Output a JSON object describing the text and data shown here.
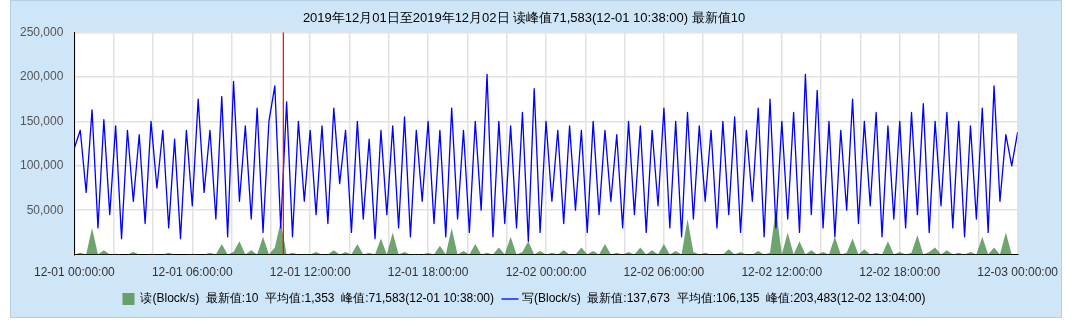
{
  "chart_data": {
    "type": "line",
    "title": "2019年12月01日至2019年12月02日 读峰值71,583(12-01 10:38:00) 最新值10",
    "x": [
      "2019-12-01T00:00",
      "2019-12-01T00:18",
      "2019-12-01T00:36",
      "2019-12-01T00:54",
      "2019-12-01T01:12",
      "2019-12-01T01:30",
      "2019-12-01T01:48",
      "2019-12-01T02:06",
      "2019-12-01T02:24",
      "2019-12-01T02:42",
      "2019-12-01T03:00",
      "2019-12-01T03:18",
      "2019-12-01T03:36",
      "2019-12-01T03:54",
      "2019-12-01T04:12",
      "2019-12-01T04:30",
      "2019-12-01T04:48",
      "2019-12-01T05:06",
      "2019-12-01T05:24",
      "2019-12-01T05:42",
      "2019-12-01T06:00",
      "2019-12-01T06:18",
      "2019-12-01T06:36",
      "2019-12-01T06:54",
      "2019-12-01T07:12",
      "2019-12-01T07:30",
      "2019-12-01T07:48",
      "2019-12-01T08:06",
      "2019-12-01T08:24",
      "2019-12-01T08:42",
      "2019-12-01T09:00",
      "2019-12-01T09:18",
      "2019-12-01T09:36",
      "2019-12-01T09:54",
      "2019-12-01T10:12",
      "2019-12-01T10:30",
      "2019-12-01T10:48",
      "2019-12-01T11:06",
      "2019-12-01T11:24",
      "2019-12-01T11:42",
      "2019-12-01T12:00",
      "2019-12-01T12:18",
      "2019-12-01T12:36",
      "2019-12-01T12:54",
      "2019-12-01T13:12",
      "2019-12-01T13:30",
      "2019-12-01T13:48",
      "2019-12-01T14:06",
      "2019-12-01T14:24",
      "2019-12-01T14:42",
      "2019-12-01T15:00",
      "2019-12-01T15:18",
      "2019-12-01T15:36",
      "2019-12-01T15:54",
      "2019-12-01T16:12",
      "2019-12-01T16:30",
      "2019-12-01T16:48",
      "2019-12-01T17:06",
      "2019-12-01T17:24",
      "2019-12-01T17:42",
      "2019-12-01T18:00",
      "2019-12-01T18:18",
      "2019-12-01T18:36",
      "2019-12-01T18:54",
      "2019-12-01T19:12",
      "2019-12-01T19:30",
      "2019-12-01T19:48",
      "2019-12-01T20:06",
      "2019-12-01T20:24",
      "2019-12-01T20:42",
      "2019-12-01T21:00",
      "2019-12-01T21:18",
      "2019-12-01T21:36",
      "2019-12-01T21:54",
      "2019-12-01T22:12",
      "2019-12-01T22:30",
      "2019-12-01T22:48",
      "2019-12-01T23:06",
      "2019-12-01T23:24",
      "2019-12-01T23:42",
      "2019-12-02T00:00",
      "2019-12-02T00:18",
      "2019-12-02T00:36",
      "2019-12-02T00:54",
      "2019-12-02T01:12",
      "2019-12-02T01:30",
      "2019-12-02T01:48",
      "2019-12-02T02:06",
      "2019-12-02T02:24",
      "2019-12-02T02:42",
      "2019-12-02T03:00",
      "2019-12-02T03:18",
      "2019-12-02T03:36",
      "2019-12-02T03:54",
      "2019-12-02T04:12",
      "2019-12-02T04:30",
      "2019-12-02T04:48",
      "2019-12-02T05:06",
      "2019-12-02T05:24",
      "2019-12-02T05:42",
      "2019-12-02T06:00",
      "2019-12-02T06:18",
      "2019-12-02T06:36",
      "2019-12-02T06:54",
      "2019-12-02T07:12",
      "2019-12-02T07:30",
      "2019-12-02T07:48",
      "2019-12-02T08:06",
      "2019-12-02T08:24",
      "2019-12-02T08:42",
      "2019-12-02T09:00",
      "2019-12-02T09:18",
      "2019-12-02T09:36",
      "2019-12-02T09:54",
      "2019-12-02T10:12",
      "2019-12-02T10:30",
      "2019-12-02T10:48",
      "2019-12-02T11:06",
      "2019-12-02T11:24",
      "2019-12-02T11:42",
      "2019-12-02T12:00",
      "2019-12-02T12:18",
      "2019-12-02T12:36",
      "2019-12-02T12:54",
      "2019-12-02T13:12",
      "2019-12-02T13:30",
      "2019-12-02T13:48",
      "2019-12-02T14:06",
      "2019-12-02T14:24",
      "2019-12-02T14:42",
      "2019-12-02T15:00",
      "2019-12-02T15:18",
      "2019-12-02T15:36",
      "2019-12-02T15:54",
      "2019-12-02T16:12",
      "2019-12-02T16:30",
      "2019-12-02T16:48",
      "2019-12-02T17:06",
      "2019-12-02T17:24",
      "2019-12-02T17:42",
      "2019-12-02T18:00",
      "2019-12-02T18:18",
      "2019-12-02T18:36",
      "2019-12-02T18:54",
      "2019-12-02T19:12",
      "2019-12-02T19:30",
      "2019-12-02T19:48",
      "2019-12-02T20:06",
      "2019-12-02T20:24",
      "2019-12-02T20:42",
      "2019-12-02T21:00",
      "2019-12-02T21:18",
      "2019-12-02T21:36",
      "2019-12-02T21:54",
      "2019-12-02T22:12",
      "2019-12-02T22:30",
      "2019-12-02T22:48",
      "2019-12-02T23:06",
      "2019-12-02T23:24",
      "2019-12-02T23:42",
      "2019-12-03T00:00"
    ],
    "series": [
      {
        "name": "读(Block/s)  最新值:10  平均值:1,353  峰值:71,583(12-01 10:38:00)",
        "type": "area",
        "color": "#4a8f4a",
        "values": [
          0,
          2000,
          0,
          30000,
          0,
          5000,
          0,
          1000,
          0,
          0,
          3000,
          0,
          0,
          1000,
          0,
          0,
          2000,
          0,
          0,
          0,
          1000,
          0,
          0,
          2000,
          0,
          12000,
          0,
          3000,
          15000,
          0,
          5000,
          0,
          20000,
          0,
          8000,
          37000,
          0,
          2000,
          0,
          1000,
          0,
          3000,
          0,
          0,
          5000,
          0,
          3000,
          0,
          12000,
          0,
          2000,
          0,
          18000,
          0,
          25000,
          0,
          3000,
          0,
          1000,
          0,
          2000,
          0,
          10000,
          0,
          30000,
          0,
          4000,
          0,
          12000,
          0,
          2000,
          0,
          8000,
          0,
          20000,
          0,
          3000,
          15000,
          0,
          4000,
          0,
          2000,
          0,
          5000,
          0,
          0,
          8000,
          0,
          4000,
          0,
          12000,
          0,
          2000,
          0,
          3000,
          0,
          8000,
          0,
          5000,
          0,
          12000,
          0,
          4000,
          0,
          40000,
          3000,
          0,
          2000,
          0,
          0,
          0,
          6000,
          0,
          3000,
          0,
          0,
          4000,
          0,
          2000,
          52000,
          0,
          25000,
          0,
          15000,
          0,
          5000,
          0,
          3000,
          0,
          20000,
          0,
          2000,
          18000,
          0,
          6000,
          0,
          2000,
          0,
          15000,
          0,
          3000,
          0,
          2000,
          22000,
          0,
          3000,
          8000,
          0,
          5000,
          0,
          2000,
          0,
          3000,
          0,
          20000,
          0,
          8000,
          0,
          25000,
          0,
          0
        ]
      },
      {
        "name": "写(Block/s)  最新值:137,673  平均值:106,135  峰值:203,483(12-02 13:04:00)",
        "type": "line",
        "color": "#0000ff",
        "values": [
          120000,
          140000,
          70000,
          163000,
          30000,
          152000,
          45000,
          145000,
          18000,
          140000,
          60000,
          135000,
          35000,
          150000,
          75000,
          140000,
          30000,
          130000,
          18000,
          140000,
          55000,
          175000,
          70000,
          140000,
          40000,
          178000,
          20000,
          195000,
          60000,
          145000,
          40000,
          165000,
          25000,
          150000,
          190000,
          30000,
          172000,
          20000,
          150000,
          60000,
          140000,
          45000,
          145000,
          35000,
          165000,
          80000,
          140000,
          25000,
          150000,
          40000,
          130000,
          18000,
          140000,
          45000,
          145000,
          30000,
          155000,
          20000,
          140000,
          60000,
          150000,
          35000,
          140000,
          20000,
          165000,
          40000,
          140000,
          25000,
          150000,
          50000,
          203000,
          20000,
          150000,
          35000,
          145000,
          30000,
          160000,
          15000,
          187000,
          25000,
          150000,
          60000,
          140000,
          35000,
          145000,
          50000,
          140000,
          25000,
          150000,
          45000,
          140000,
          60000,
          135000,
          30000,
          150000,
          45000,
          145000,
          25000,
          140000,
          55000,
          165000,
          30000,
          150000,
          20000,
          160000,
          40000,
          145000,
          60000,
          140000,
          30000,
          150000,
          45000,
          155000,
          25000,
          140000,
          60000,
          165000,
          20000,
          175000,
          30000,
          150000,
          40000,
          160000,
          25000,
          203000,
          45000,
          185000,
          30000,
          150000,
          20000,
          140000,
          50000,
          175000,
          35000,
          150000,
          55000,
          160000,
          20000,
          145000,
          40000,
          150000,
          30000,
          160000,
          45000,
          170000,
          25000,
          150000,
          55000,
          160000,
          30000,
          150000,
          20000,
          145000,
          40000,
          165000,
          25000,
          190000,
          60000,
          135000,
          100000,
          138000
        ]
      }
    ],
    "xticks": [
      {
        "value": "2019-12-01T00:00",
        "label": "12-01 00:00:00"
      },
      {
        "value": "2019-12-01T02:00",
        "label": null
      },
      {
        "value": "2019-12-01T04:00",
        "label": null
      },
      {
        "value": "2019-12-01T06:00",
        "label": "12-01 06:00:00"
      },
      {
        "value": "2019-12-01T08:00",
        "label": null
      },
      {
        "value": "2019-12-01T10:00",
        "label": null
      },
      {
        "value": "2019-12-01T12:00",
        "label": "12-01 12:00:00"
      },
      {
        "value": "2019-12-01T14:00",
        "label": null
      },
      {
        "value": "2019-12-01T16:00",
        "label": null
      },
      {
        "value": "2019-12-01T18:00",
        "label": "12-01 18:00:00"
      },
      {
        "value": "2019-12-01T20:00",
        "label": null
      },
      {
        "value": "2019-12-01T22:00",
        "label": null
      },
      {
        "value": "2019-12-02T00:00",
        "label": "12-02 00:00:00"
      },
      {
        "value": "2019-12-02T02:00",
        "label": null
      },
      {
        "value": "2019-12-02T04:00",
        "label": null
      },
      {
        "value": "2019-12-02T06:00",
        "label": "12-02 06:00:00"
      },
      {
        "value": "2019-12-02T08:00",
        "label": null
      },
      {
        "value": "2019-12-02T10:00",
        "label": null
      },
      {
        "value": "2019-12-02T12:00",
        "label": "12-02 12:00:00"
      },
      {
        "value": "2019-12-02T14:00",
        "label": null
      },
      {
        "value": "2019-12-02T16:00",
        "label": null
      },
      {
        "value": "2019-12-02T18:00",
        "label": "12-02 18:00:00"
      },
      {
        "value": "2019-12-02T20:00",
        "label": null
      },
      {
        "value": "2019-12-02T22:00",
        "label": null
      },
      {
        "value": "2019-12-03T00:00",
        "label": "12-03 00:00:00"
      }
    ],
    "xlim": [
      "2019-12-01T00:00",
      "2019-12-03T00:00"
    ],
    "ylim": [
      0,
      250000
    ],
    "yticks": [
      {
        "value": 0,
        "label": null
      },
      {
        "value": 50000,
        "label": "50,000"
      },
      {
        "value": 100000,
        "label": "100,000"
      },
      {
        "value": 150000,
        "label": "150,000"
      },
      {
        "value": 200000,
        "label": "200,000"
      },
      {
        "value": 250000,
        "label": "250,000"
      }
    ],
    "ref_lines": [
      {
        "axis": "x",
        "value": "2019-12-01T10:38",
        "color": "#ff0000"
      }
    ],
    "grid": true,
    "legend": "bottom",
    "marker": "none",
    "line_style": "solid"
  }
}
